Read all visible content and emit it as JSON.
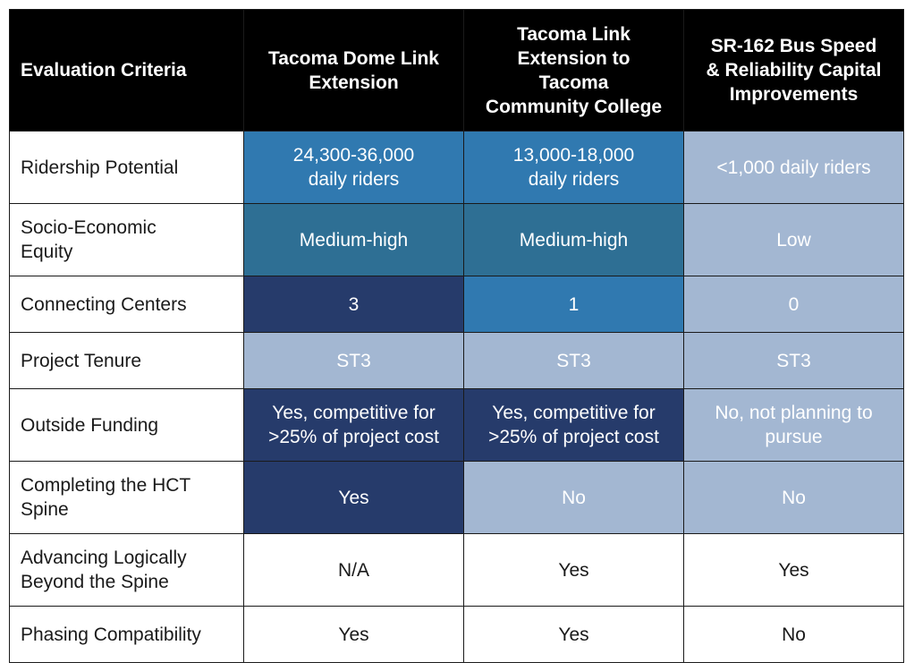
{
  "header": {
    "criteria": "Evaluation Criteria",
    "col1": "Tacoma Dome Link\nExtension",
    "col2": "Tacoma Link\nExtension to\nTacoma\nCommunity College",
    "col3": "SR-162 Bus Speed\n& Reliability Capital\nImprovements"
  },
  "colors": {
    "header_bg": "#000000",
    "dark_navy": "#263b6b",
    "medium_blue": "#3079b0",
    "teal_blue": "#2e6f94",
    "light_blue": "#a3b7d2",
    "white": "#ffffff"
  },
  "rows": [
    {
      "criteria": "Ridership Potential",
      "cells": [
        "24,300-36,000\ndaily riders",
        "13,000-18,000\ndaily riders",
        "<1,000 daily riders"
      ]
    },
    {
      "criteria": "Socio-Economic\nEquity",
      "cells": [
        "Medium-high",
        "Medium-high",
        "Low"
      ]
    },
    {
      "criteria": "Connecting Centers",
      "cells": [
        "3",
        "1",
        "0"
      ]
    },
    {
      "criteria": "Project Tenure",
      "cells": [
        "ST3",
        "ST3",
        "ST3"
      ]
    },
    {
      "criteria": "Outside Funding",
      "cells": [
        "Yes, competitive for\n>25% of project cost",
        "Yes, competitive for\n>25% of project cost",
        "No, not planning to\npursue"
      ]
    },
    {
      "criteria": "Completing the HCT\nSpine",
      "cells": [
        "Yes",
        "No",
        "No"
      ]
    },
    {
      "criteria": "Advancing Logically\nBeyond the Spine",
      "cells": [
        "N/A",
        "Yes",
        "Yes"
      ]
    },
    {
      "criteria": "Phasing Compatibility",
      "cells": [
        "Yes",
        "Yes",
        "No"
      ]
    }
  ]
}
